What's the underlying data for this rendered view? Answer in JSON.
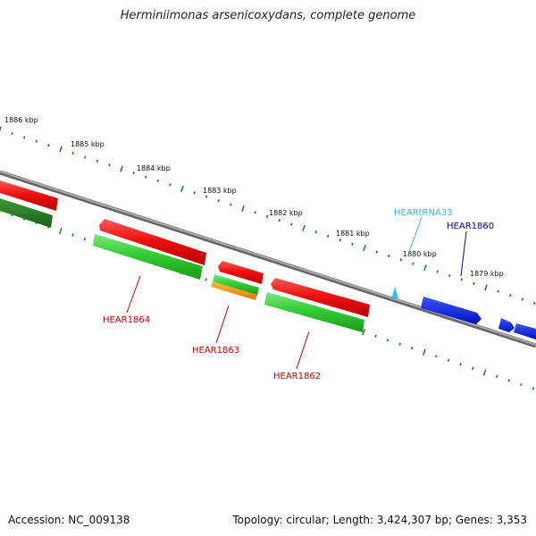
{
  "title": "Herminiimonas arsenicoxydans, complete genome",
  "footer": {
    "accession": "Accession: NC_009138",
    "summary": "Topology: circular; Length: 3,424,307 bp; Genes: 3,353"
  },
  "ruler": {
    "unit": "kbp",
    "ticks": [
      {
        "label": "1886 kbp"
      },
      {
        "label": "1885 kbp"
      },
      {
        "label": "1884 kbp"
      },
      {
        "label": "1883 kbp"
      },
      {
        "label": "1882 kbp"
      },
      {
        "label": "1881 kbp"
      },
      {
        "label": "1880 kbp"
      },
      {
        "label": "1879 kbp"
      }
    ]
  },
  "gene_labels": [
    {
      "name": "HEAR1864",
      "color": "#cc0000"
    },
    {
      "name": "HEAR1863",
      "color": "#cc0000"
    },
    {
      "name": "HEAR1862",
      "color": "#cc0000"
    },
    {
      "name": "HEARtRNA33",
      "color": "#33bbdd"
    },
    {
      "name": "HEAR1860",
      "color": "#0000bb"
    }
  ],
  "colors": {
    "backbone": "#888888",
    "forward_cds": "#ee1111",
    "reverse_cds": "#22cc22",
    "rna": "#33bbdd",
    "blue_feature": "#1122ee",
    "orange_feature": "#ff9900",
    "tick": "#228822"
  }
}
